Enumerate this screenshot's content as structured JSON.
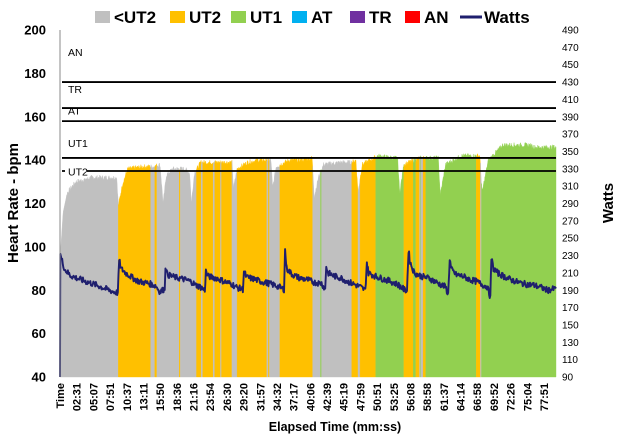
{
  "chart_data": {
    "type": "area",
    "title": "",
    "xlabel": "Elapsed Time (mm:ss)",
    "ylabel": "Heart Rate - bpm",
    "y2label": "Watts",
    "ylim": [
      40,
      200
    ],
    "y2lim": [
      90,
      490
    ],
    "x_range_seconds": [
      0,
      4760
    ],
    "yticks": [
      40,
      60,
      80,
      100,
      120,
      140,
      160,
      180,
      200
    ],
    "y2ticks": [
      90,
      110,
      130,
      150,
      170,
      190,
      210,
      230,
      250,
      270,
      290,
      310,
      330,
      350,
      370,
      390,
      410,
      430,
      450,
      470,
      490
    ],
    "xticks": [
      "Time",
      "02:31",
      "05:07",
      "07:51",
      "10:37",
      "13:11",
      "15:50",
      "18:36",
      "21:16",
      "23:54",
      "26:30",
      "29:20",
      "31:57",
      "34:32",
      "37:17",
      "40:06",
      "42:39",
      "45:19",
      "47:59",
      "50:51",
      "53:25",
      "56:08",
      "58:58",
      "61:37",
      "64:14",
      "66:58",
      "69:52",
      "72:26",
      "75:04",
      "77:51"
    ],
    "legend": [
      {
        "name": "<UT2",
        "color": "#c0c0c0",
        "kind": "area"
      },
      {
        "name": "UT2",
        "color": "#ffc000",
        "kind": "area"
      },
      {
        "name": "UT1",
        "color": "#92d050",
        "kind": "area"
      },
      {
        "name": "AT",
        "color": "#00b0f0",
        "kind": "area"
      },
      {
        "name": "TR",
        "color": "#7030a0",
        "kind": "area"
      },
      {
        "name": "AN",
        "color": "#ff0000",
        "kind": "area"
      },
      {
        "name": "Watts",
        "color": "#1f1f6e",
        "kind": "line"
      }
    ],
    "zone_thresholds": [
      {
        "label": "UT2",
        "bpm": 135
      },
      {
        "label": "UT1",
        "bpm": 141
      },
      {
        "label": "AT",
        "bpm": 158
      },
      {
        "label": "TR",
        "bpm": 164
      },
      {
        "label": "AN",
        "bpm": 176
      }
    ],
    "hr_profile_seconds": [
      [
        0,
        40
      ],
      [
        8,
        100
      ],
      [
        30,
        116
      ],
      [
        70,
        125
      ],
      [
        150,
        130
      ],
      [
        300,
        132
      ],
      [
        400,
        132
      ],
      [
        545,
        132
      ],
      [
        560,
        119
      ],
      [
        600,
        129
      ],
      [
        650,
        136
      ],
      [
        800,
        137
      ],
      [
        900,
        137
      ],
      [
        960,
        138
      ],
      [
        990,
        120
      ],
      [
        1020,
        133
      ],
      [
        1080,
        136
      ],
      [
        1200,
        136
      ],
      [
        1245,
        134
      ],
      [
        1260,
        120
      ],
      [
        1290,
        134
      ],
      [
        1350,
        139
      ],
      [
        1500,
        139
      ],
      [
        1650,
        139
      ],
      [
        1665,
        127
      ],
      [
        1700,
        136
      ],
      [
        1800,
        139
      ],
      [
        1900,
        140
      ],
      [
        2025,
        140
      ],
      [
        2040,
        127
      ],
      [
        2075,
        137
      ],
      [
        2200,
        140
      ],
      [
        2300,
        140
      ],
      [
        2420,
        141
      ],
      [
        2440,
        123
      ],
      [
        2480,
        132
      ],
      [
        2530,
        138
      ],
      [
        2700,
        139
      ],
      [
        2800,
        139
      ],
      [
        2840,
        140
      ],
      [
        2860,
        125
      ],
      [
        2900,
        138
      ],
      [
        3050,
        142
      ],
      [
        3200,
        141
      ],
      [
        3240,
        141
      ],
      [
        3260,
        125
      ],
      [
        3300,
        138
      ],
      [
        3450,
        141
      ],
      [
        3600,
        141
      ],
      [
        3630,
        141
      ],
      [
        3650,
        124
      ],
      [
        3700,
        138
      ],
      [
        3850,
        142
      ],
      [
        4000,
        142
      ],
      [
        4030,
        142
      ],
      [
        4050,
        125
      ],
      [
        4110,
        140
      ],
      [
        4250,
        147
      ],
      [
        4400,
        147
      ],
      [
        4500,
        147
      ],
      [
        4560,
        146
      ],
      [
        4760,
        146
      ]
    ],
    "zone_segments_seconds": [
      {
        "zone": "<UT2",
        "start": 0,
        "end": 560
      },
      {
        "zone": "UT2",
        "start": 560,
        "end": 870
      },
      {
        "zone": "<UT2",
        "start": 870,
        "end": 910
      },
      {
        "zone": "UT2",
        "start": 910,
        "end": 930
      },
      {
        "zone": "<UT2",
        "start": 930,
        "end": 1145
      },
      {
        "zone": "UT2",
        "start": 1145,
        "end": 1155
      },
      {
        "zone": "<UT2",
        "start": 1155,
        "end": 1310
      },
      {
        "zone": "UT2",
        "start": 1310,
        "end": 1355
      },
      {
        "zone": "<UT2",
        "start": 1355,
        "end": 1370
      },
      {
        "zone": "UT2",
        "start": 1370,
        "end": 1470
      },
      {
        "zone": "<UT2",
        "start": 1470,
        "end": 1485
      },
      {
        "zone": "UT2",
        "start": 1485,
        "end": 1540
      },
      {
        "zone": "<UT2",
        "start": 1540,
        "end": 1550
      },
      {
        "zone": "UT2",
        "start": 1550,
        "end": 1650
      },
      {
        "zone": "<UT2",
        "start": 1650,
        "end": 1700
      },
      {
        "zone": "UT2",
        "start": 1700,
        "end": 1985
      },
      {
        "zone": "<UT2",
        "start": 1985,
        "end": 2000
      },
      {
        "zone": "UT2",
        "start": 2000,
        "end": 2010
      },
      {
        "zone": "<UT2",
        "start": 2010,
        "end": 2110
      },
      {
        "zone": "UT2",
        "start": 2110,
        "end": 2425
      },
      {
        "zone": "<UT2",
        "start": 2425,
        "end": 2500
      },
      {
        "zone": "UT1",
        "start": 2500,
        "end": 2510
      },
      {
        "zone": "<UT2",
        "start": 2510,
        "end": 2800
      },
      {
        "zone": "UT2",
        "start": 2800,
        "end": 2860
      },
      {
        "zone": "<UT2",
        "start": 2860,
        "end": 2880
      },
      {
        "zone": "UT2",
        "start": 2880,
        "end": 3030
      },
      {
        "zone": "UT1",
        "start": 3030,
        "end": 3300
      },
      {
        "zone": "UT2",
        "start": 3300,
        "end": 3390
      },
      {
        "zone": "UT1",
        "start": 3390,
        "end": 3415
      },
      {
        "zone": "UT2",
        "start": 3415,
        "end": 3450
      },
      {
        "zone": "<UT2",
        "start": 3450,
        "end": 3460
      },
      {
        "zone": "UT1",
        "start": 3460,
        "end": 3465
      },
      {
        "zone": "<UT2",
        "start": 3465,
        "end": 3485
      },
      {
        "zone": "UT2",
        "start": 3485,
        "end": 3510
      },
      {
        "zone": "UT1",
        "start": 3510,
        "end": 3995
      },
      {
        "zone": "UT2",
        "start": 3995,
        "end": 4035
      },
      {
        "zone": "<UT2",
        "start": 4035,
        "end": 4045
      },
      {
        "zone": "UT1",
        "start": 4045,
        "end": 4760
      }
    ],
    "watts_profile_seconds": [
      [
        0,
        90
      ],
      [
        3,
        232
      ],
      [
        15,
        226
      ],
      [
        45,
        214
      ],
      [
        100,
        207
      ],
      [
        160,
        204
      ],
      [
        250,
        200
      ],
      [
        350,
        196
      ],
      [
        430,
        192
      ],
      [
        520,
        188
      ],
      [
        555,
        187
      ],
      [
        568,
        225
      ],
      [
        585,
        215
      ],
      [
        630,
        210
      ],
      [
        700,
        204
      ],
      [
        760,
        200
      ],
      [
        850,
        198
      ],
      [
        920,
        195
      ],
      [
        960,
        188
      ],
      [
        1005,
        192
      ],
      [
        1012,
        218
      ],
      [
        1030,
        208
      ],
      [
        1100,
        205
      ],
      [
        1180,
        203
      ],
      [
        1260,
        200
      ],
      [
        1300,
        196
      ],
      [
        1345,
        194
      ],
      [
        1390,
        190
      ],
      [
        1400,
        212
      ],
      [
        1420,
        206
      ],
      [
        1500,
        204
      ],
      [
        1580,
        200
      ],
      [
        1650,
        197
      ],
      [
        1700,
        193
      ],
      [
        1755,
        191
      ],
      [
        1765,
        212
      ],
      [
        1790,
        205
      ],
      [
        1860,
        203
      ],
      [
        1930,
        200
      ],
      [
        2000,
        198
      ],
      [
        2080,
        195
      ],
      [
        2150,
        191
      ],
      [
        2160,
        236
      ],
      [
        2175,
        215
      ],
      [
        2230,
        208
      ],
      [
        2300,
        204
      ],
      [
        2380,
        202
      ],
      [
        2440,
        199
      ],
      [
        2510,
        198
      ],
      [
        2545,
        191
      ],
      [
        2555,
        218
      ],
      [
        2570,
        210
      ],
      [
        2640,
        206
      ],
      [
        2700,
        204
      ],
      [
        2760,
        200
      ],
      [
        2820,
        197
      ],
      [
        2880,
        194
      ],
      [
        2930,
        190
      ],
      [
        2945,
        222
      ],
      [
        2960,
        210
      ],
      [
        3030,
        206
      ],
      [
        3100,
        203
      ],
      [
        3180,
        200
      ],
      [
        3250,
        196
      ],
      [
        3310,
        190
      ],
      [
        3330,
        190
      ],
      [
        3345,
        236
      ],
      [
        3360,
        222
      ],
      [
        3400,
        210
      ],
      [
        3470,
        206
      ],
      [
        3540,
        204
      ],
      [
        3600,
        200
      ],
      [
        3660,
        196
      ],
      [
        3700,
        194
      ],
      [
        3725,
        185
      ],
      [
        3740,
        226
      ],
      [
        3755,
        214
      ],
      [
        3800,
        208
      ],
      [
        3870,
        206
      ],
      [
        3940,
        202
      ],
      [
        4000,
        200
      ],
      [
        4060,
        196
      ],
      [
        4100,
        194
      ],
      [
        4130,
        182
      ],
      [
        4140,
        227
      ],
      [
        4160,
        215
      ],
      [
        4200,
        210
      ],
      [
        4260,
        206
      ],
      [
        4330,
        202
      ],
      [
        4400,
        199
      ],
      [
        4470,
        197
      ],
      [
        4540,
        196
      ],
      [
        4600,
        194
      ],
      [
        4680,
        190
      ],
      [
        4760,
        192
      ]
    ]
  }
}
